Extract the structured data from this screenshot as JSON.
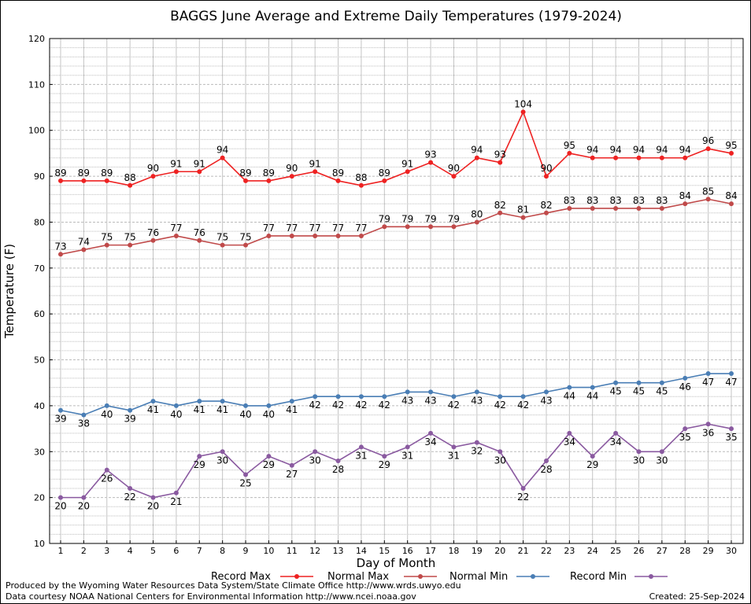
{
  "chart_data": {
    "type": "line",
    "title": "BAGGS June Average and Extreme Daily Temperatures (1979-2024)",
    "xlabel": "Day of Month",
    "ylabel": "Temperature (F)",
    "xlim": [
      1,
      30
    ],
    "ylim": [
      10,
      120
    ],
    "yticks": [
      10,
      20,
      30,
      40,
      50,
      60,
      70,
      80,
      90,
      100,
      110,
      120
    ],
    "x": [
      1,
      2,
      3,
      4,
      5,
      6,
      7,
      8,
      9,
      10,
      11,
      12,
      13,
      14,
      15,
      16,
      17,
      18,
      19,
      20,
      21,
      22,
      23,
      24,
      25,
      26,
      27,
      28,
      29,
      30
    ],
    "grid": true,
    "legend_position": "bottom",
    "series": [
      {
        "name": "Record Max",
        "color": "#ee2222",
        "values": [
          89,
          89,
          89,
          88,
          90,
          91,
          91,
          94,
          89,
          89,
          90,
          91,
          89,
          88,
          89,
          91,
          93,
          90,
          94,
          93,
          104,
          90,
          95,
          94,
          94,
          94,
          94,
          94,
          96,
          95
        ]
      },
      {
        "name": "Normal Max",
        "color": "#c04a4a",
        "values": [
          73,
          74,
          75,
          75,
          76,
          77,
          76,
          75,
          75,
          77,
          77,
          77,
          77,
          77,
          79,
          79,
          79,
          79,
          80,
          82,
          81,
          82,
          83,
          83,
          83,
          83,
          83,
          84,
          85,
          84
        ]
      },
      {
        "name": "Normal Min",
        "color": "#4a7eb5",
        "values": [
          39,
          38,
          40,
          39,
          41,
          40,
          41,
          41,
          40,
          40,
          41,
          42,
          42,
          42,
          42,
          43,
          43,
          42,
          43,
          42,
          42,
          43,
          44,
          44,
          45,
          45,
          45,
          46,
          47,
          47
        ]
      },
      {
        "name": "Record Min",
        "color": "#8a5aa0",
        "values": [
          20,
          20,
          26,
          22,
          20,
          21,
          29,
          30,
          25,
          29,
          27,
          30,
          28,
          31,
          29,
          31,
          34,
          31,
          32,
          30,
          22,
          28,
          34,
          29,
          34,
          30,
          30,
          35,
          36,
          35
        ]
      }
    ]
  },
  "footer": {
    "produced_by": "Produced by the Wyoming Water Resources Data System/State Climate Office http://www.wrds.uwyo.edu",
    "data_courtesy": "Data courtesy NOAA National Centers for Environmental Information http://www.ncei.noaa.gov",
    "created": "Created:  25-Sep-2024"
  }
}
